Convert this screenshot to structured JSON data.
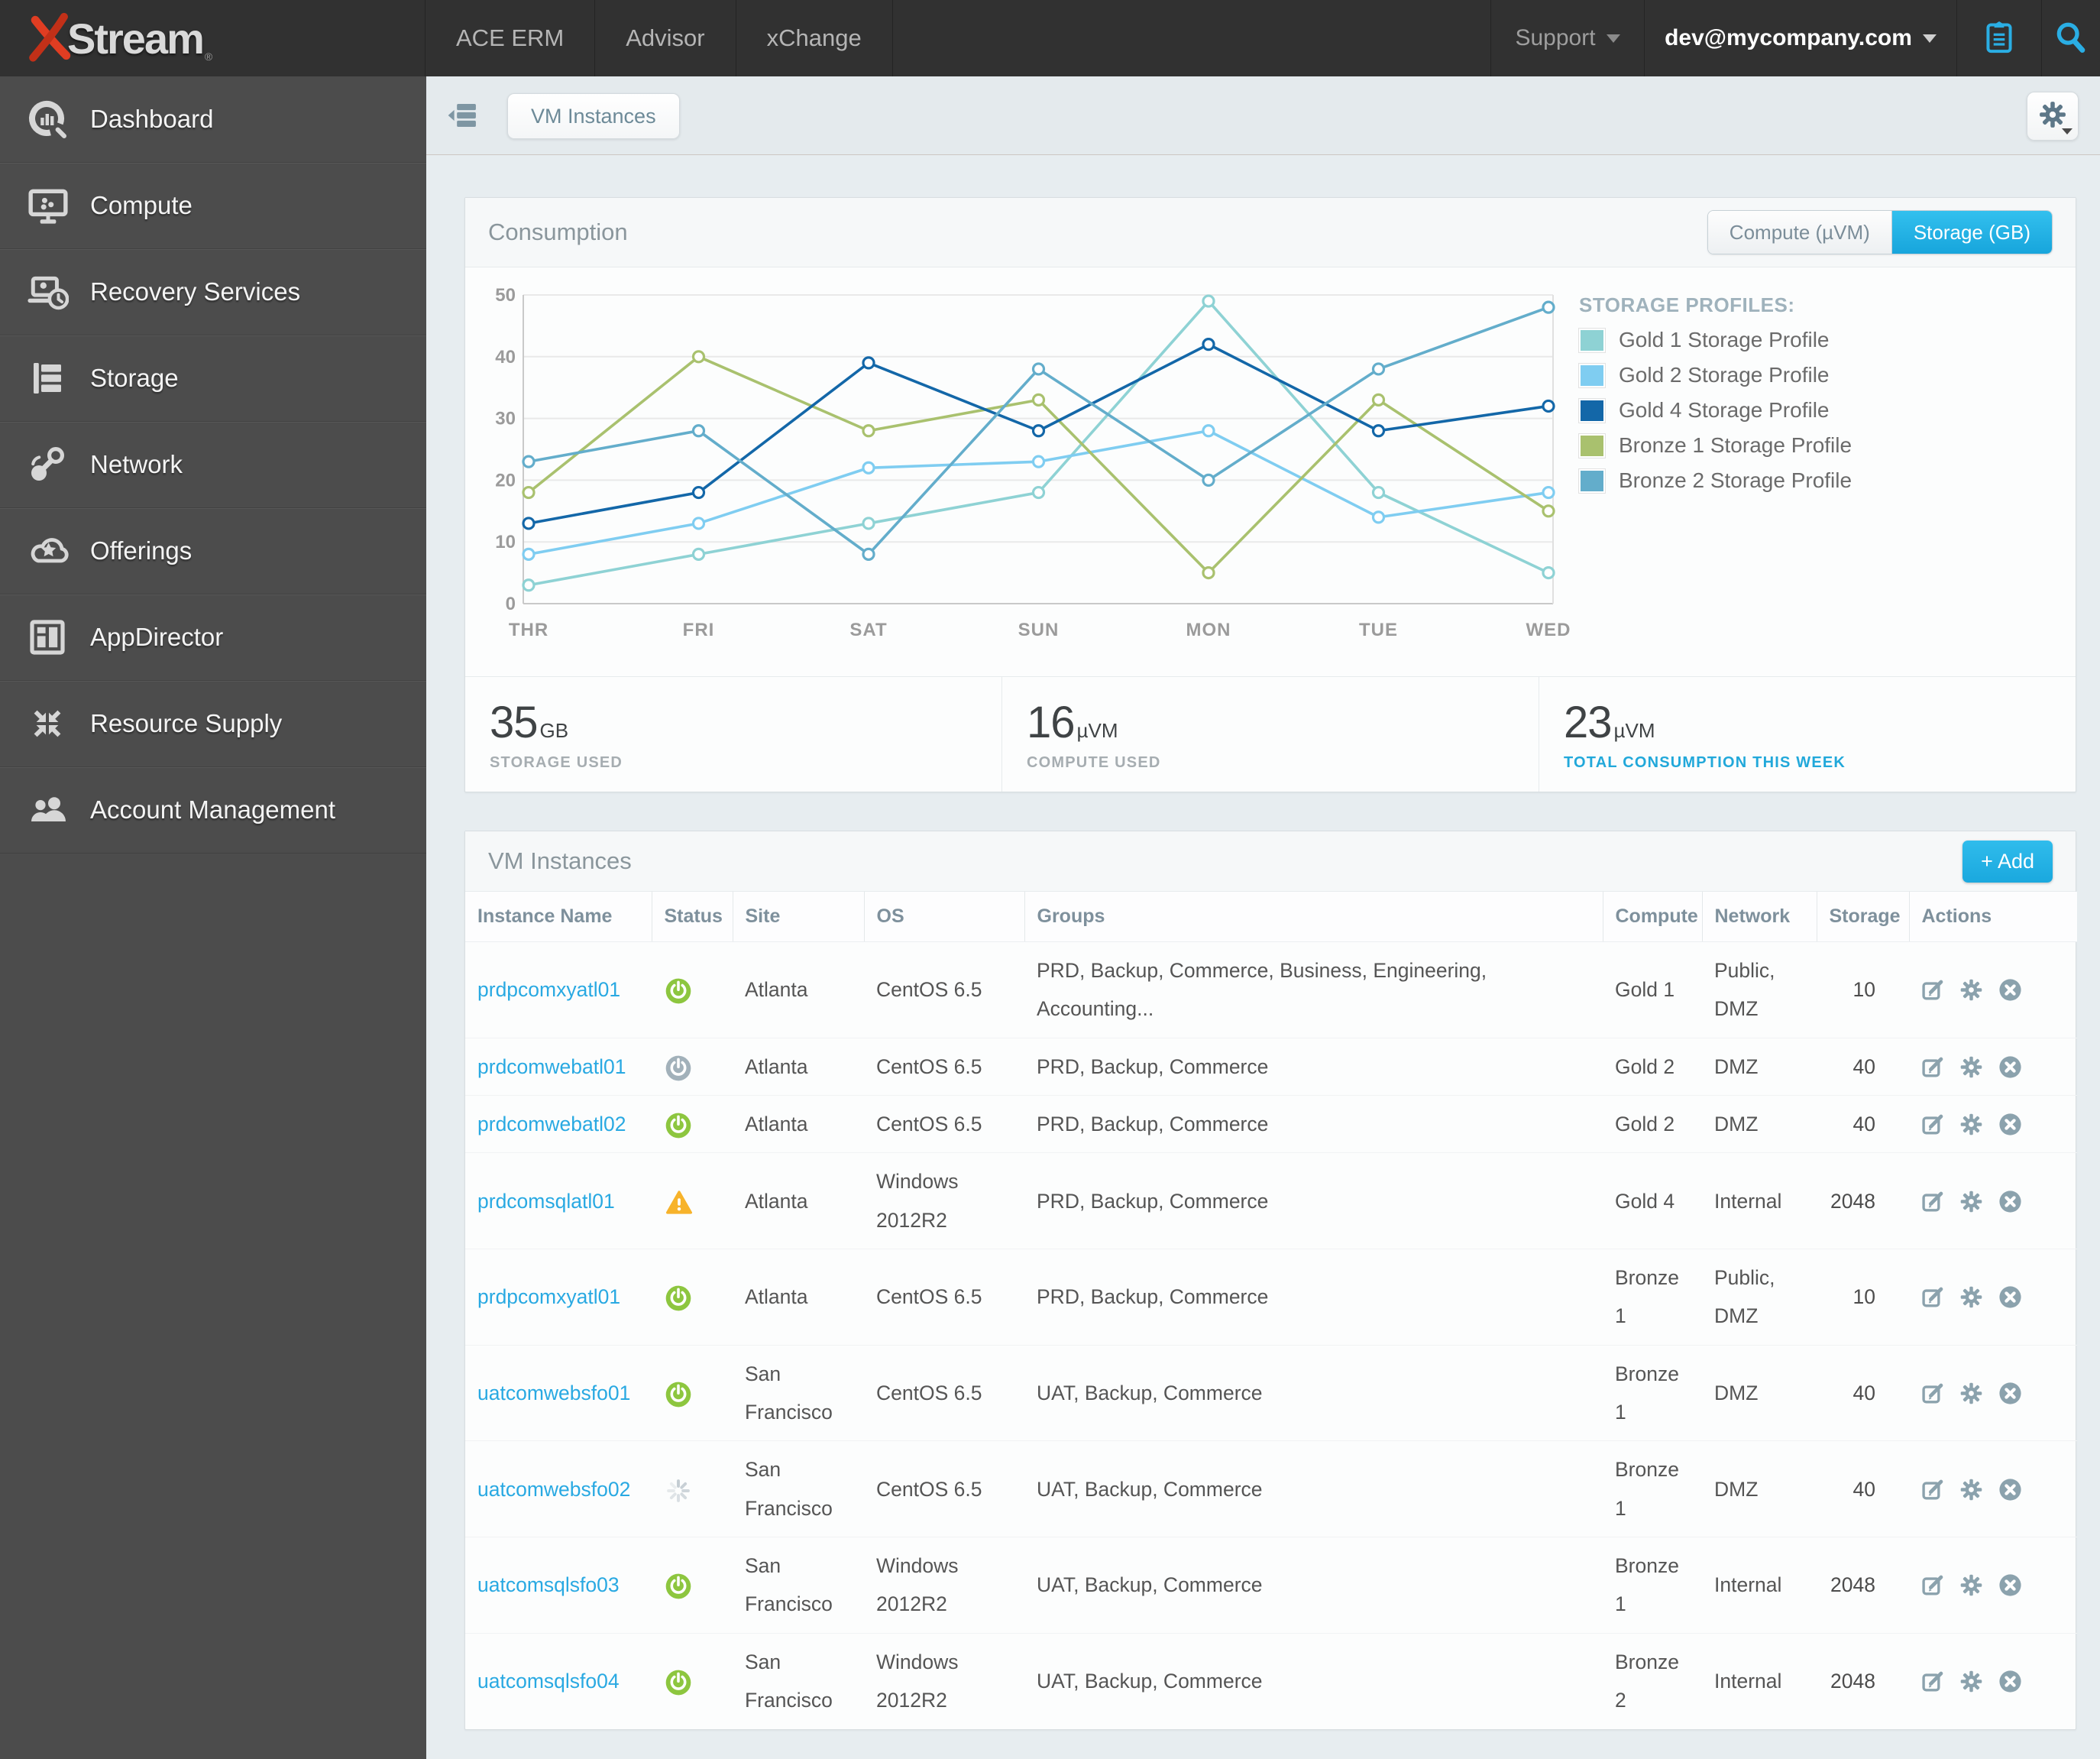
{
  "topbar": {
    "brand_x": "x",
    "brand": "Stream",
    "registered": "®",
    "tabs": [
      "ACE ERM",
      "Advisor",
      "xChange"
    ],
    "support_label": "Support",
    "user_email": "dev@mycompany.com",
    "icons": [
      "clipboard-icon",
      "search-icon"
    ]
  },
  "sidebar": {
    "items": [
      {
        "label": "Dashboard",
        "icon": "dashboard-icon"
      },
      {
        "label": "Compute",
        "icon": "compute-icon"
      },
      {
        "label": "Recovery Services",
        "icon": "recovery-services-icon"
      },
      {
        "label": "Storage",
        "icon": "storage-icon"
      },
      {
        "label": "Network",
        "icon": "network-icon"
      },
      {
        "label": "Offerings",
        "icon": "offerings-icon"
      },
      {
        "label": "AppDirector",
        "icon": "appdirector-icon"
      },
      {
        "label": "Resource Supply",
        "icon": "resource-supply-icon"
      },
      {
        "label": "Account Management",
        "icon": "account-management-icon"
      }
    ]
  },
  "breadcrumb": {
    "current": "VM Instances"
  },
  "consumption": {
    "title": "Consumption",
    "toggle": {
      "options": [
        "Compute (µVM)",
        "Storage (GB)"
      ],
      "active": "Storage (GB)"
    },
    "legend_title": "STORAGE PROFILES:",
    "stats": [
      {
        "value": "35",
        "unit": "GB",
        "label": "STORAGE USED"
      },
      {
        "value": "16",
        "unit": "µVM",
        "label": "COMPUTE USED"
      },
      {
        "value": "23",
        "unit": "µVM",
        "label": "TOTAL CONSUMPTION THIS WEEK"
      }
    ]
  },
  "chart_data": {
    "type": "line",
    "x": [
      "THR",
      "FRI",
      "SAT",
      "SUN",
      "MON",
      "TUE",
      "WED"
    ],
    "ylim": [
      0,
      50
    ],
    "yticks": [
      0,
      10,
      20,
      30,
      40,
      50
    ],
    "grid": true,
    "legend_position": "right",
    "series": [
      {
        "name": "Gold 1 Storage Profile",
        "color": "#8ed2d4",
        "values": [
          3,
          8,
          13,
          18,
          49,
          18,
          5
        ]
      },
      {
        "name": "Gold 2 Storage Profile",
        "color": "#7fcdf1",
        "values": [
          8,
          13,
          22,
          23,
          28,
          14,
          18
        ]
      },
      {
        "name": "Gold 4 Storage Profile",
        "color": "#1367a8",
        "values": [
          13,
          18,
          39,
          28,
          42,
          28,
          32
        ]
      },
      {
        "name": "Bronze 1 Storage Profile",
        "color": "#a9c16e",
        "values": [
          18,
          40,
          28,
          33,
          5,
          33,
          15
        ]
      },
      {
        "name": "Bronze 2 Storage Profile",
        "color": "#63adcb",
        "values": [
          23,
          28,
          8,
          38,
          20,
          38,
          48
        ]
      }
    ]
  },
  "vm_table": {
    "title": "VM Instances",
    "add_button": "+ Add",
    "columns": [
      "Instance Name",
      "Status",
      "Site",
      "OS",
      "Groups",
      "Compute",
      "Network",
      "Storage",
      "Actions"
    ],
    "action_icons": [
      "edit-icon",
      "gear-icon",
      "delete-icon"
    ],
    "rows": [
      {
        "name": "prdpcomxyatl01",
        "status": "power-on",
        "site": "Atlanta",
        "os": "CentOS 6.5",
        "groups": "PRD, Backup, Commerce, Business, Engineering, Accounting...",
        "compute": "Gold 1",
        "network": "Public, DMZ",
        "storage": "10"
      },
      {
        "name": "prdcomwebatl01",
        "status": "power-off",
        "site": "Atlanta",
        "os": "CentOS 6.5",
        "groups": "PRD, Backup, Commerce",
        "compute": "Gold 2",
        "network": "DMZ",
        "storage": "40"
      },
      {
        "name": "prdcomwebatl02",
        "status": "power-on",
        "site": "Atlanta",
        "os": "CentOS 6.5",
        "groups": "PRD, Backup, Commerce",
        "compute": "Gold 2",
        "network": "DMZ",
        "storage": "40"
      },
      {
        "name": "prdcomsqlatl01",
        "status": "warning",
        "site": "Atlanta",
        "os": "Windows 2012R2",
        "groups": "PRD, Backup, Commerce",
        "compute": "Gold 4",
        "network": "Internal",
        "storage": "2048"
      },
      {
        "name": "prdpcomxyatl01",
        "status": "power-on",
        "site": "Atlanta",
        "os": "CentOS 6.5",
        "groups": "PRD, Backup, Commerce",
        "compute": "Bronze 1",
        "network": "Public, DMZ",
        "storage": "10"
      },
      {
        "name": "uatcomwebsfo01",
        "status": "power-on",
        "site": "San Francisco",
        "os": "CentOS 6.5",
        "groups": "UAT, Backup, Commerce",
        "compute": "Bronze 1",
        "network": "DMZ",
        "storage": "40"
      },
      {
        "name": "uatcomwebsfo02",
        "status": "loading",
        "site": "San Francisco",
        "os": "CentOS 6.5",
        "groups": "UAT, Backup, Commerce",
        "compute": "Bronze 1",
        "network": "DMZ",
        "storage": "40"
      },
      {
        "name": "uatcomsqlsfo03",
        "status": "power-on",
        "site": "San Francisco",
        "os": "Windows 2012R2",
        "groups": "UAT, Backup, Commerce",
        "compute": "Bronze 1",
        "network": "Internal",
        "storage": "2048"
      },
      {
        "name": "uatcomsqlsfo04",
        "status": "power-on",
        "site": "San Francisco",
        "os": "Windows 2012R2",
        "groups": "UAT, Backup, Commerce",
        "compute": "Bronze 2",
        "network": "Internal",
        "storage": "2048"
      }
    ]
  },
  "colors": {
    "accent_cyan": "#29b5e8",
    "link": "#29a9e2",
    "brand_red": "#e03d22",
    "status_on": "#8dc63f",
    "status_off": "#a2b1ba",
    "status_warning": "#f7b32b",
    "action_slate": "#8ba2ad",
    "sidebar_bg": "#4c4c4c",
    "topbar_bg": "#313131"
  }
}
